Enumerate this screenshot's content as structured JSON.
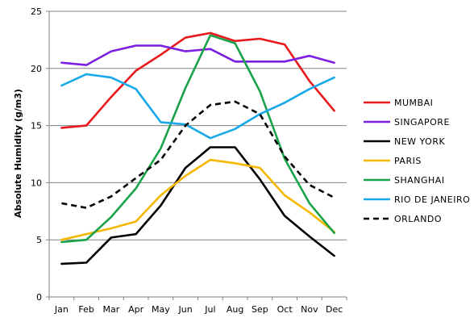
{
  "chart_data": {
    "type": "line",
    "title": "",
    "xlabel": "",
    "ylabel": "Absolute Humidity  (g/m3)",
    "categories": [
      "Jan",
      "Feb",
      "Mar",
      "Apr",
      "May",
      "Jun",
      "Jul",
      "Aug",
      "Sep",
      "Oct",
      "Nov",
      "Dec"
    ],
    "yticks": [
      0,
      5,
      10,
      15,
      20,
      25
    ],
    "ylim": [
      0,
      25
    ],
    "grid": "horizontal",
    "legend_position": "right",
    "series": [
      {
        "name": "MUMBAI",
        "color": "#e8181b",
        "dash": "solid",
        "values": [
          14.8,
          15.0,
          17.5,
          19.8,
          21.2,
          22.7,
          23.1,
          22.4,
          22.6,
          22.1,
          18.9,
          16.3
        ]
      },
      {
        "name": "SINGAPORE",
        "color": "#7b1fe0",
        "dash": "solid",
        "values": [
          20.5,
          20.3,
          21.5,
          22.0,
          22.0,
          21.5,
          21.7,
          20.6,
          20.6,
          20.6,
          21.1,
          20.5
        ]
      },
      {
        "name": "NEW YORK",
        "color": "#000000",
        "dash": "solid",
        "values": [
          2.9,
          3.0,
          5.2,
          5.5,
          8.0,
          11.3,
          13.1,
          13.1,
          10.3,
          7.1,
          5.3,
          3.6
        ]
      },
      {
        "name": "PARIS",
        "color": "#f5b800",
        "dash": "solid",
        "values": [
          5.0,
          5.5,
          6.0,
          6.6,
          8.9,
          10.6,
          12.0,
          11.7,
          11.3,
          8.9,
          7.4,
          5.7
        ]
      },
      {
        "name": "SHANGHAI",
        "color": "#1aa24a",
        "dash": "solid",
        "values": [
          4.8,
          5.0,
          7.0,
          9.5,
          13.0,
          18.3,
          22.9,
          22.2,
          18.0,
          12.1,
          8.2,
          5.6
        ]
      },
      {
        "name": "RIO DE JANEIRO",
        "color": "#17a8e8",
        "dash": "solid",
        "values": [
          18.5,
          19.5,
          19.2,
          18.2,
          15.3,
          15.1,
          13.9,
          14.7,
          16.0,
          17.0,
          18.2,
          19.2
        ]
      },
      {
        "name": "ORLANDO",
        "color": "#000000",
        "dash": "dashed",
        "values": [
          8.2,
          7.8,
          8.8,
          10.4,
          12.0,
          15.0,
          16.8,
          17.1,
          16.0,
          12.3,
          9.8,
          8.7
        ]
      }
    ]
  }
}
